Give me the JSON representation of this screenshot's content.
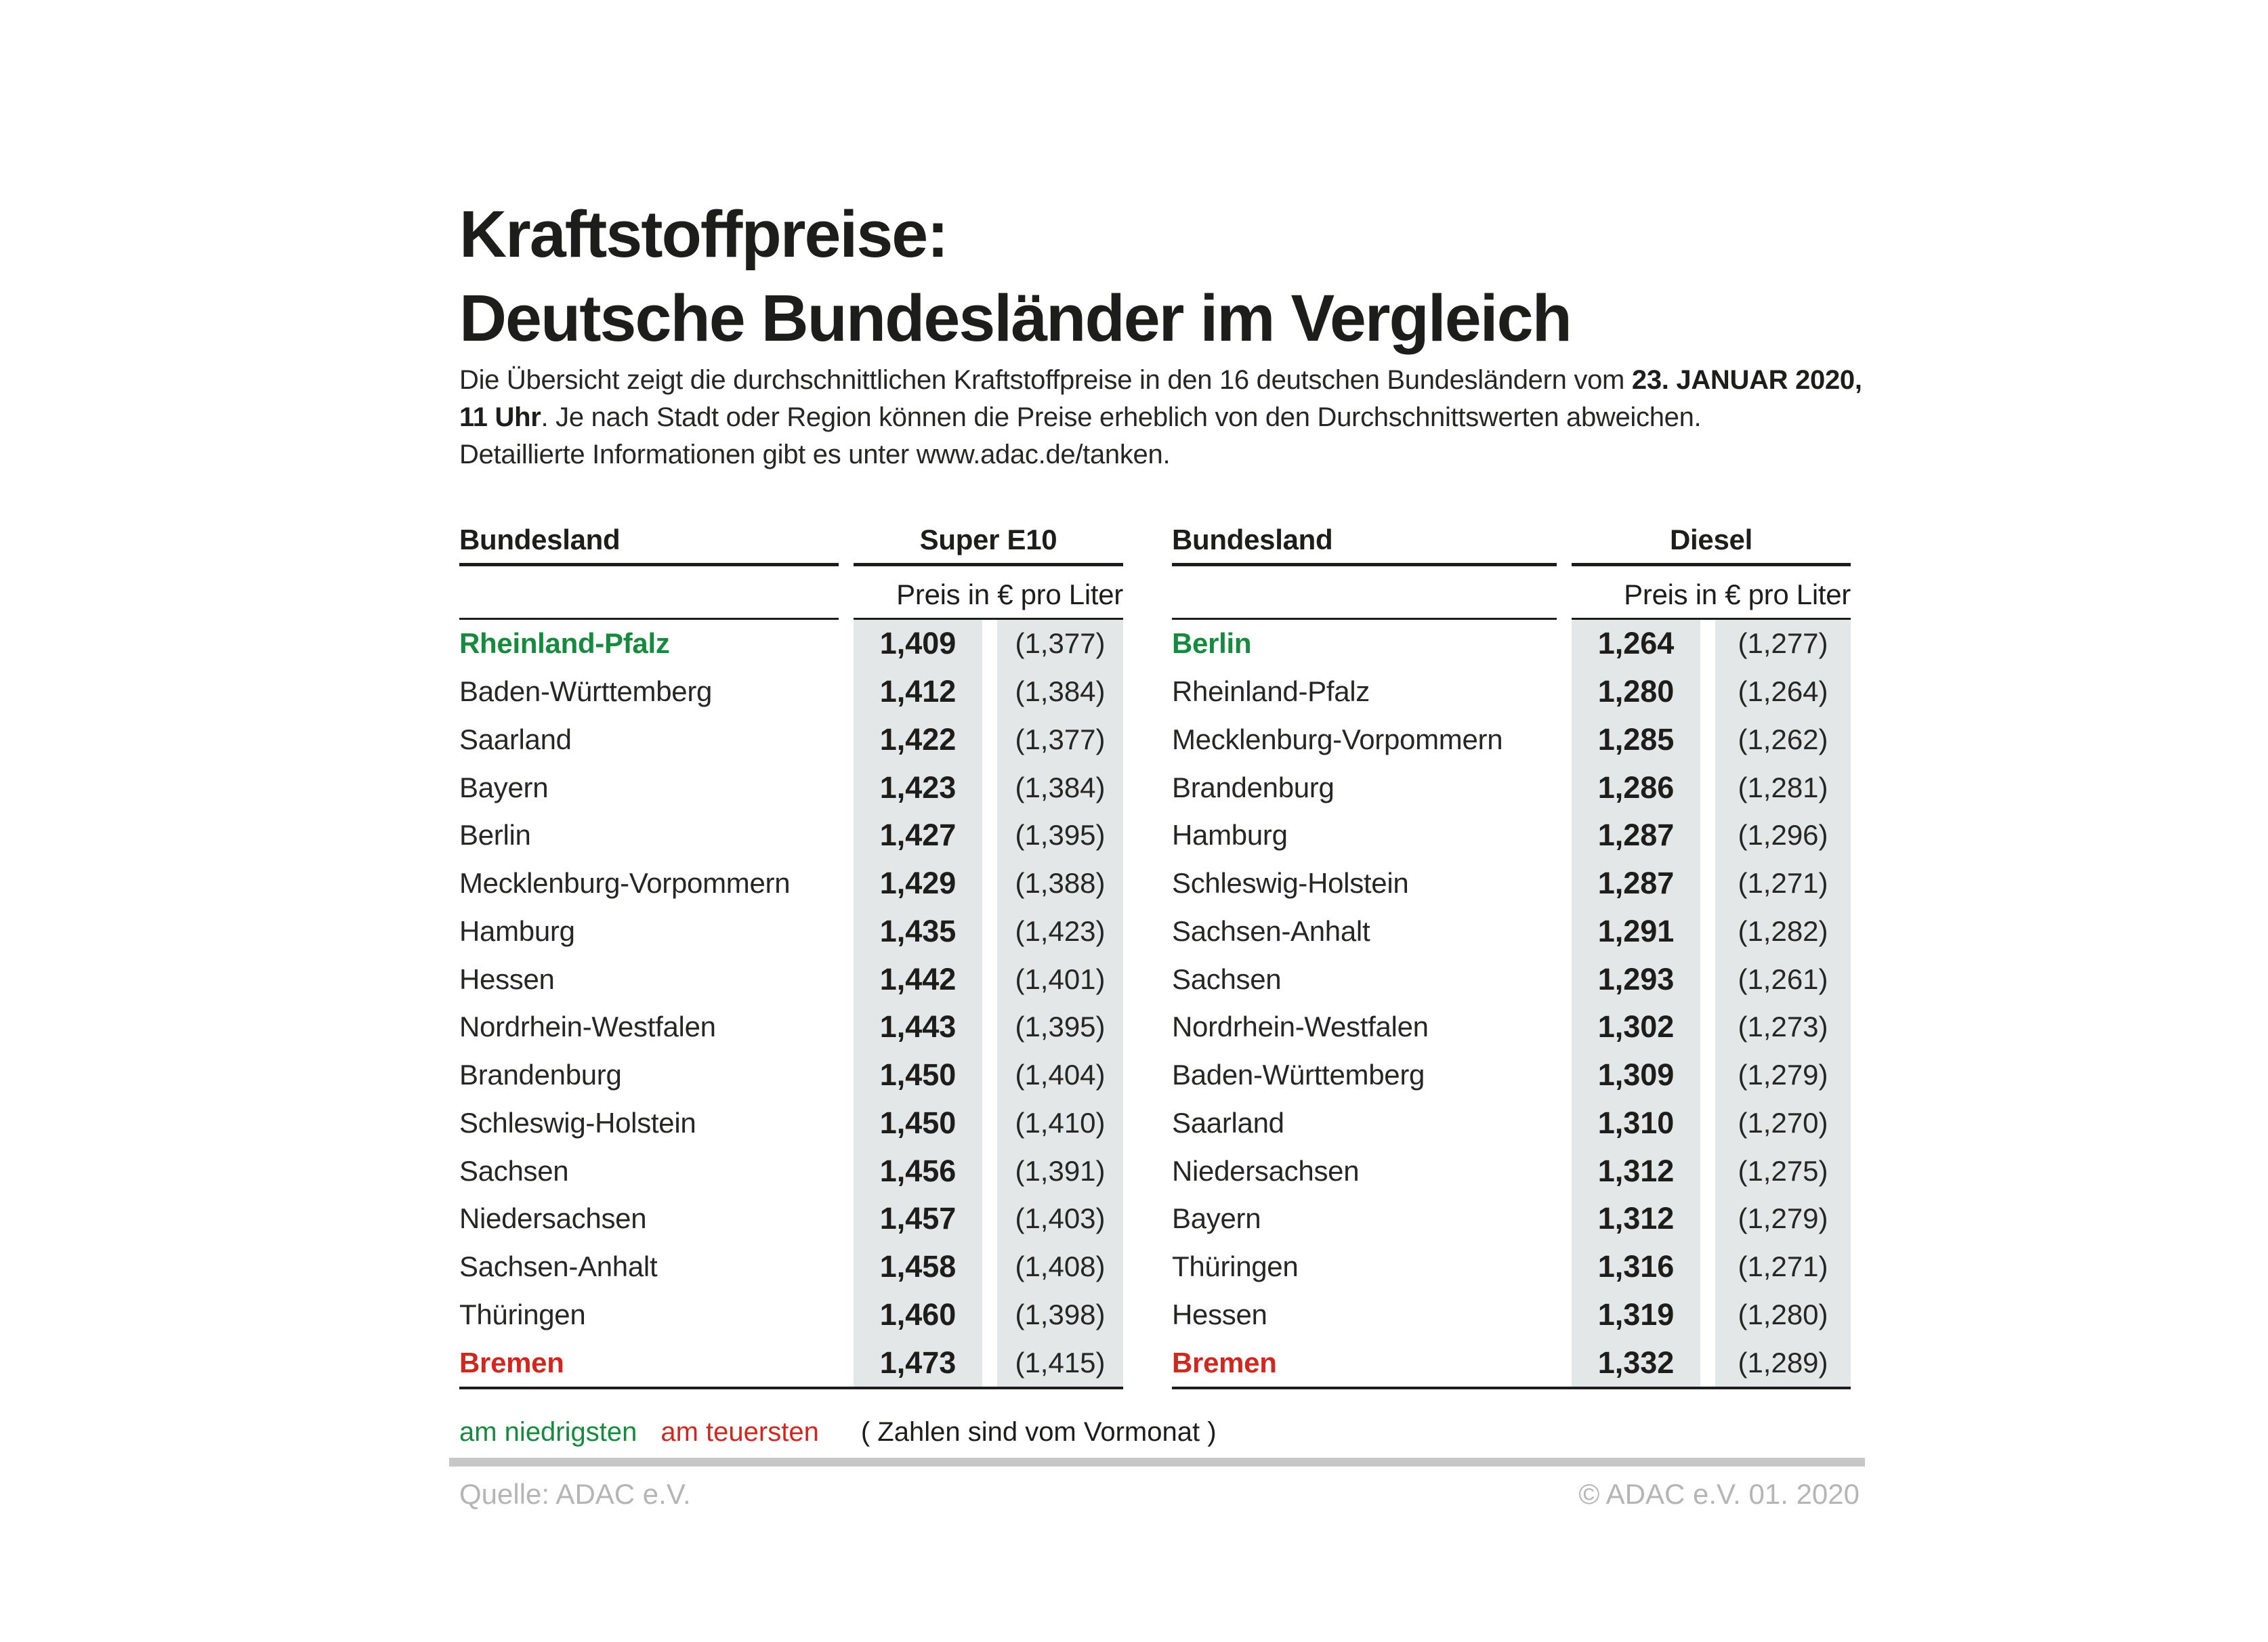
{
  "title": {
    "line1": "Kraftstoffpreise:",
    "line2": "Deutsche Bundesländer im Vergleich"
  },
  "intro": {
    "line1": "Die Übersicht zeigt die durchschnittlichen Kraftstoffpreise in den 16 deutschen Bundesländern vom ",
    "line1_bold": "23. JANUAR 2020,",
    "line2_bold": "11 Uhr",
    "line2": ". Je nach Stadt oder Region können die Preise erheblich von den Durchschnittswerten abweichen.",
    "line3": "Detaillierte Informationen gibt es unter www.adac.de/tanken."
  },
  "tables": [
    {
      "col_header": "Bundesland",
      "fuel_header": "Super E10",
      "unit_header": "Preis in € pro Liter",
      "rows": [
        {
          "state": "Rheinland-Pfalz",
          "price": "1,409",
          "prev": "(1,377)",
          "highlight": "min"
        },
        {
          "state": "Baden-Württemberg",
          "price": "1,412",
          "prev": "(1,384)",
          "highlight": null
        },
        {
          "state": "Saarland",
          "price": "1,422",
          "prev": "(1,377)",
          "highlight": null
        },
        {
          "state": "Bayern",
          "price": "1,423",
          "prev": "(1,384)",
          "highlight": null
        },
        {
          "state": "Berlin",
          "price": "1,427",
          "prev": "(1,395)",
          "highlight": null
        },
        {
          "state": "Mecklenburg-Vorpommern",
          "price": "1,429",
          "prev": "(1,388)",
          "highlight": null
        },
        {
          "state": "Hamburg",
          "price": "1,435",
          "prev": "(1,423)",
          "highlight": null
        },
        {
          "state": "Hessen",
          "price": "1,442",
          "prev": "(1,401)",
          "highlight": null
        },
        {
          "state": "Nordrhein-Westfalen",
          "price": "1,443",
          "prev": "(1,395)",
          "highlight": null
        },
        {
          "state": "Brandenburg",
          "price": "1,450",
          "prev": "(1,404)",
          "highlight": null
        },
        {
          "state": "Schleswig-Holstein",
          "price": "1,450",
          "prev": "(1,410)",
          "highlight": null
        },
        {
          "state": "Sachsen",
          "price": "1,456",
          "prev": "(1,391)",
          "highlight": null
        },
        {
          "state": "Niedersachsen",
          "price": "1,457",
          "prev": "(1,403)",
          "highlight": null
        },
        {
          "state": "Sachsen-Anhalt",
          "price": "1,458",
          "prev": "(1,408)",
          "highlight": null
        },
        {
          "state": "Thüringen",
          "price": "1,460",
          "prev": "(1,398)",
          "highlight": null
        },
        {
          "state": "Bremen",
          "price": "1,473",
          "prev": "(1,415)",
          "highlight": "max"
        }
      ]
    },
    {
      "col_header": "Bundesland",
      "fuel_header": "Diesel",
      "unit_header": "Preis in € pro Liter",
      "rows": [
        {
          "state": "Berlin",
          "price": "1,264",
          "prev": "(1,277)",
          "highlight": "min"
        },
        {
          "state": "Rheinland-Pfalz",
          "price": "1,280",
          "prev": "(1,264)",
          "highlight": null
        },
        {
          "state": "Mecklenburg-Vorpommern",
          "price": "1,285",
          "prev": "(1,262)",
          "highlight": null
        },
        {
          "state": "Brandenburg",
          "price": "1,286",
          "prev": "(1,281)",
          "highlight": null
        },
        {
          "state": "Hamburg",
          "price": "1,287",
          "prev": "(1,296)",
          "highlight": null
        },
        {
          "state": "Schleswig-Holstein",
          "price": "1,287",
          "prev": "(1,271)",
          "highlight": null
        },
        {
          "state": "Sachsen-Anhalt",
          "price": "1,291",
          "prev": "(1,282)",
          "highlight": null
        },
        {
          "state": "Sachsen",
          "price": "1,293",
          "prev": "(1,261)",
          "highlight": null
        },
        {
          "state": "Nordrhein-Westfalen",
          "price": "1,302",
          "prev": "(1,273)",
          "highlight": null
        },
        {
          "state": "Baden-Württemberg",
          "price": "1,309",
          "prev": "(1,279)",
          "highlight": null
        },
        {
          "state": "Saarland",
          "price": "1,310",
          "prev": "(1,270)",
          "highlight": null
        },
        {
          "state": "Niedersachsen",
          "price": "1,312",
          "prev": "(1,275)",
          "highlight": null
        },
        {
          "state": "Bayern",
          "price": "1,312",
          "prev": "(1,279)",
          "highlight": null
        },
        {
          "state": "Thüringen",
          "price": "1,316",
          "prev": "(1,271)",
          "highlight": null
        },
        {
          "state": "Hessen",
          "price": "1,319",
          "prev": "(1,280)",
          "highlight": null
        },
        {
          "state": "Bremen",
          "price": "1,332",
          "prev": "(1,289)",
          "highlight": "max"
        }
      ]
    }
  ],
  "legend": {
    "lowest": "am niedrigsten",
    "highest": "am teuersten",
    "note": "( Zahlen sind vom Vormonat )"
  },
  "footer": {
    "source": "Quelle: ADAC e.V.",
    "copyright": "© ADAC e.V. 01. 2020"
  },
  "colors": {
    "text": "#1d1d1b",
    "green": "#168b3e",
    "red": "#d2271f",
    "stripe": "#e3e7e7",
    "divider": "#c7c7c7",
    "footer_gray": "#b5b5b5"
  },
  "chart_data": {
    "type": "table",
    "title": "Kraftstoffpreise: Deutsche Bundesländer im Vergleich",
    "subtitle": "Durchschnittliche Kraftstoffpreise in den 16 deutschen Bundesländern vom 23. Januar 2020, 11 Uhr",
    "unit": "Preis in € pro Liter",
    "note": "Zahlen in Klammern sind vom Vormonat; grün = am niedrigsten, rot = am teuersten",
    "tables": [
      {
        "fuel": "Super E10",
        "columns": [
          "Bundesland",
          "Preis",
          "Vormonat"
        ],
        "rows": [
          [
            "Rheinland-Pfalz",
            1.409,
            1.377
          ],
          [
            "Baden-Württemberg",
            1.412,
            1.384
          ],
          [
            "Saarland",
            1.422,
            1.377
          ],
          [
            "Bayern",
            1.423,
            1.384
          ],
          [
            "Berlin",
            1.427,
            1.395
          ],
          [
            "Mecklenburg-Vorpommern",
            1.429,
            1.388
          ],
          [
            "Hamburg",
            1.435,
            1.423
          ],
          [
            "Hessen",
            1.442,
            1.401
          ],
          [
            "Nordrhein-Westfalen",
            1.443,
            1.395
          ],
          [
            "Brandenburg",
            1.45,
            1.404
          ],
          [
            "Schleswig-Holstein",
            1.45,
            1.41
          ],
          [
            "Sachsen",
            1.456,
            1.391
          ],
          [
            "Niedersachsen",
            1.457,
            1.403
          ],
          [
            "Sachsen-Anhalt",
            1.458,
            1.408
          ],
          [
            "Thüringen",
            1.46,
            1.398
          ],
          [
            "Bremen",
            1.473,
            1.415
          ]
        ]
      },
      {
        "fuel": "Diesel",
        "columns": [
          "Bundesland",
          "Preis",
          "Vormonat"
        ],
        "rows": [
          [
            "Berlin",
            1.264,
            1.277
          ],
          [
            "Rheinland-Pfalz",
            1.28,
            1.264
          ],
          [
            "Mecklenburg-Vorpommern",
            1.285,
            1.262
          ],
          [
            "Brandenburg",
            1.286,
            1.281
          ],
          [
            "Hamburg",
            1.287,
            1.296
          ],
          [
            "Schleswig-Holstein",
            1.287,
            1.271
          ],
          [
            "Sachsen-Anhalt",
            1.291,
            1.282
          ],
          [
            "Sachsen",
            1.293,
            1.261
          ],
          [
            "Nordrhein-Westfalen",
            1.302,
            1.273
          ],
          [
            "Baden-Württemberg",
            1.309,
            1.279
          ],
          [
            "Saarland",
            1.31,
            1.27
          ],
          [
            "Niedersachsen",
            1.312,
            1.275
          ],
          [
            "Bayern",
            1.312,
            1.279
          ],
          [
            "Thüringen",
            1.316,
            1.271
          ],
          [
            "Hessen",
            1.319,
            1.28
          ],
          [
            "Bremen",
            1.332,
            1.289
          ]
        ]
      }
    ]
  }
}
